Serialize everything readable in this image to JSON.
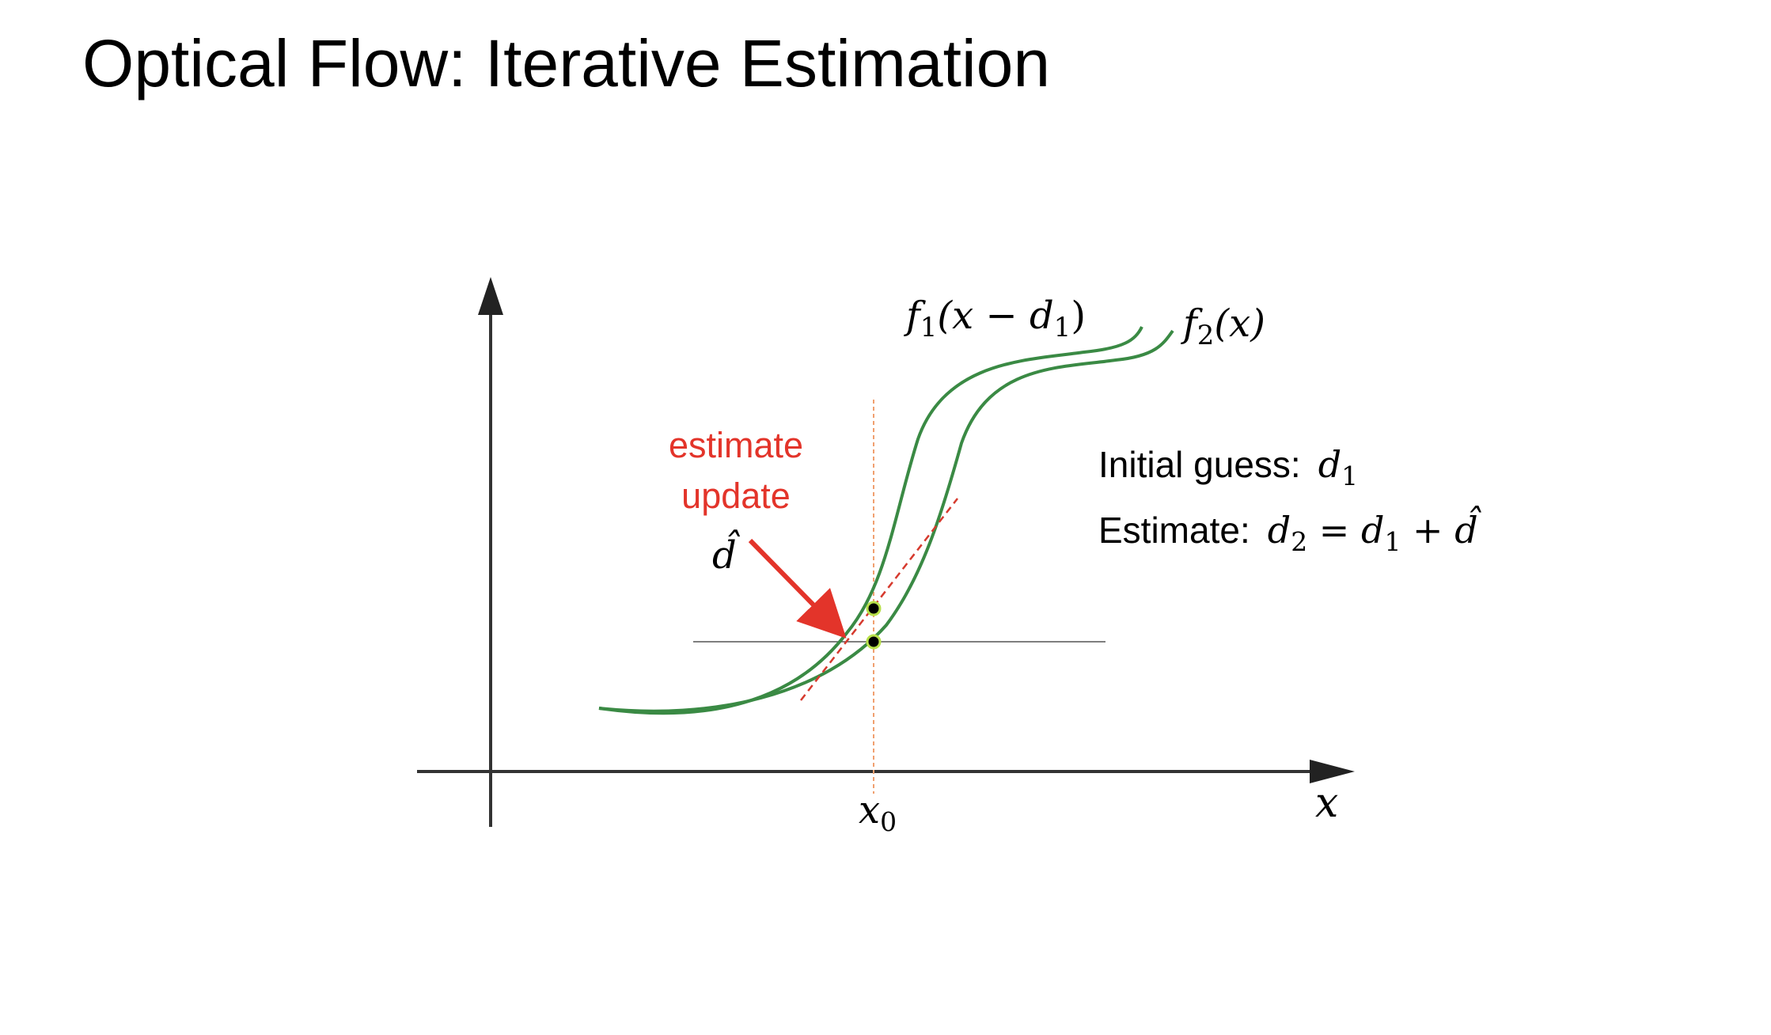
{
  "slide": {
    "title": "Optical Flow: Iterative Estimation"
  },
  "labels": {
    "curve_f1": {
      "fn": "f",
      "sub": "1",
      "open": "(x − d",
      "arg_sub": "1",
      "close": ")"
    },
    "curve_f2": {
      "fn": "f",
      "sub": "2",
      "rest": "(x)"
    },
    "x_axis": "x",
    "x0": {
      "main": "x",
      "sub": "0"
    },
    "update": {
      "line1": "estimate",
      "line2": "update",
      "symbol": "d̂"
    },
    "initial_guess": {
      "label": "Initial guess:",
      "var": "d",
      "sub": "1"
    },
    "estimate": {
      "label": "Estimate:",
      "lhs": "d",
      "lhs_sub": "2",
      "eq": " = ",
      "term1": "d",
      "term1_sub": "1",
      "plus": " + ",
      "term2": "d̂"
    }
  },
  "colors": {
    "curve": "#3a8a44",
    "update_red": "#e3342a",
    "dashed_red": "#d63a2e",
    "x0_guide": "#f0a070",
    "axis": "#333333",
    "point_fill": "#000000",
    "point_ring": "#b8e04a"
  }
}
